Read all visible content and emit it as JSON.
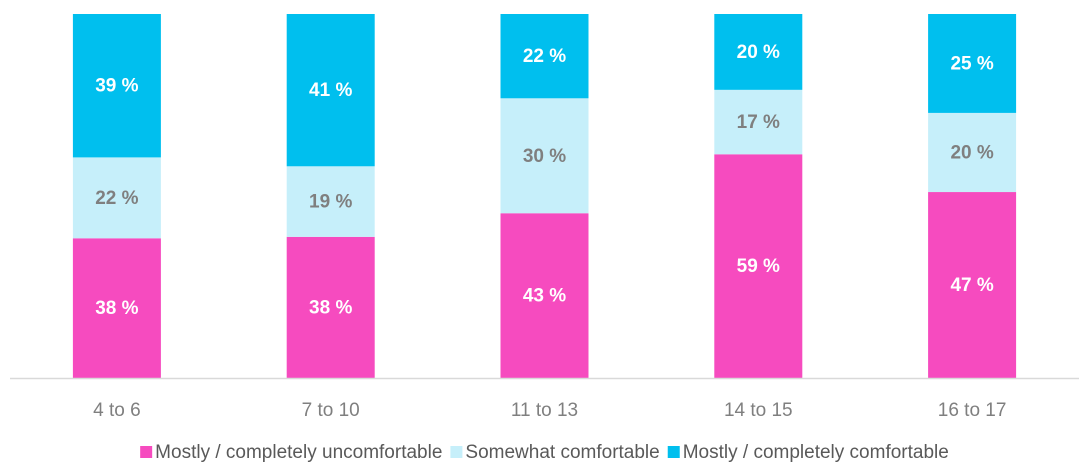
{
  "chart_data": {
    "type": "bar",
    "stacked": "percent",
    "categories": [
      "4 to 6",
      "7 to 10",
      "11 to 13",
      "14 to 15",
      "16 to 17"
    ],
    "series": [
      {
        "name": "Mostly / completely uncomfortable",
        "color": "#f64bbf",
        "label_color": "#ffffff",
        "values": [
          38,
          38,
          43,
          59,
          47
        ],
        "value_labels": [
          "38 %",
          "38 %",
          "43 %",
          "59 %",
          "47 %"
        ]
      },
      {
        "name": "Somewhat comfortable",
        "color": "#c6effa",
        "label_color": "#7f7f7f",
        "values": [
          22,
          19,
          30,
          17,
          20
        ],
        "value_labels": [
          "22 %",
          "19 %",
          "30 %",
          "17 %",
          "20 %"
        ]
      },
      {
        "name": "Mostly / completely comfortable",
        "color": "#00bfee",
        "label_color": "#ffffff",
        "values": [
          39,
          41,
          22,
          20,
          25
        ],
        "value_labels": [
          "39 %",
          "41 %",
          "22 %",
          "20 %",
          "25 %"
        ]
      }
    ],
    "legend": "bottom"
  }
}
